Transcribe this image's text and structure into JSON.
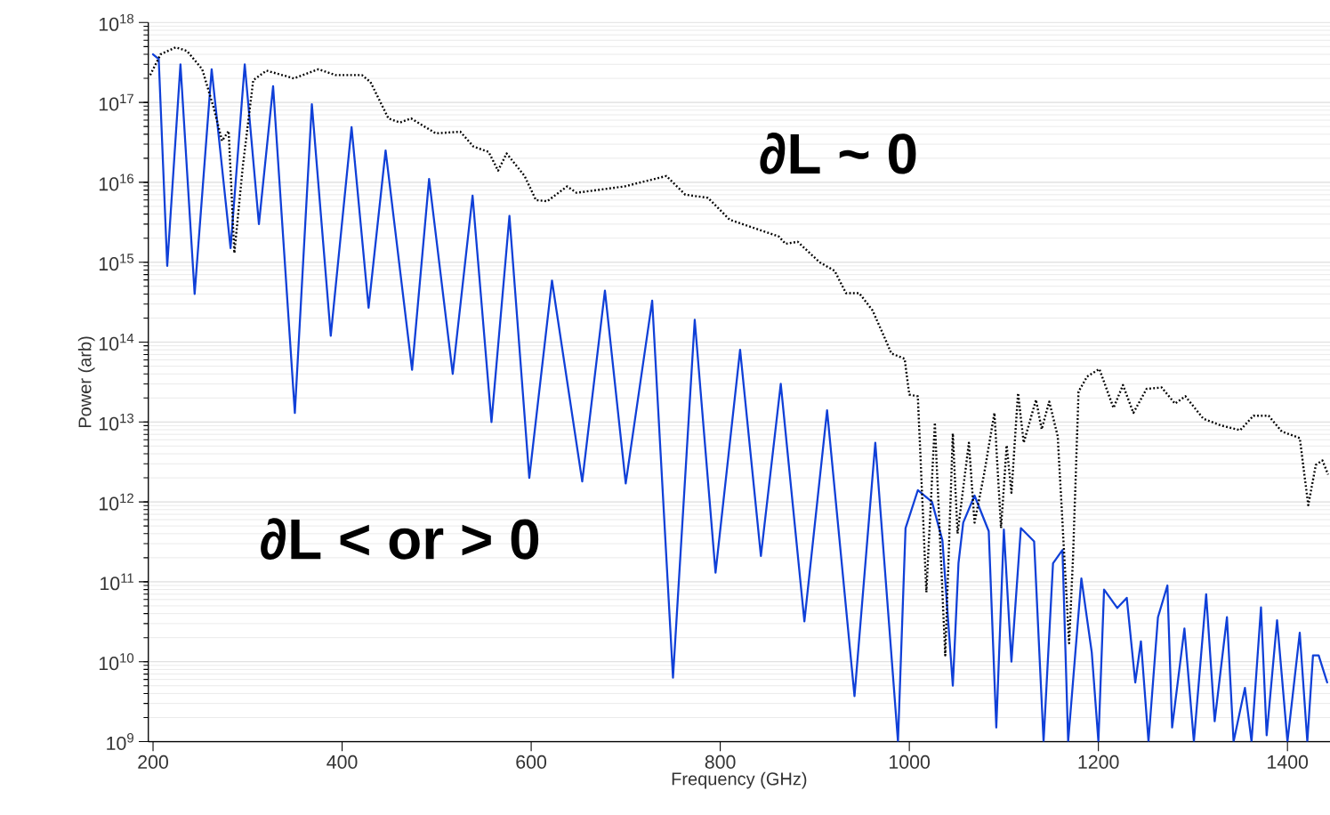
{
  "chart_data": {
    "type": "line",
    "xlabel": "Frequency (GHz)",
    "ylabel": "Power (arb)",
    "xlim": [
      195,
      1445
    ],
    "xticks": [
      200,
      400,
      600,
      800,
      1000,
      1200,
      1400
    ],
    "ylim": [
      1000000000.0,
      1e+18
    ],
    "yticks": [
      {
        "value": 1000000000.0,
        "label": "10$^{9}$"
      },
      {
        "value": 10000000000.0,
        "label": "10$^{10}$"
      },
      {
        "value": 100000000000.0,
        "label": "10$^{11}$"
      },
      {
        "value": 1000000000000.0,
        "label": "10$^{12}$"
      },
      {
        "value": 10000000000000.0,
        "label": "10$^{13}$"
      },
      {
        "value": 100000000000000.0,
        "label": "10$^{14}$"
      },
      {
        "value": 1000000000000000.0,
        "label": "10$^{15}$"
      },
      {
        "value": 1e+16,
        "label": "10$^{16}$"
      },
      {
        "value": 1e+17,
        "label": "10$^{17}$"
      },
      {
        "value": 1e+18,
        "label": "10$^{18}$"
      }
    ],
    "log": "y",
    "grid": "y",
    "annotations": [
      "∂L ~ 0",
      "∂L < or > 0"
    ],
    "series": [
      {
        "color": "#1040d8",
        "line_style": "solid",
        "x": [
          200,
          206,
          215,
          229,
          244,
          262,
          282,
          297,
          312,
          327,
          350,
          368,
          388,
          410,
          428,
          446,
          474,
          492,
          517,
          538,
          558,
          577,
          598,
          622,
          654,
          678,
          700,
          728,
          750,
          773,
          795,
          821,
          843,
          864,
          889,
          913,
          942,
          964,
          988,
          996,
          1009,
          1024,
          1035,
          1046,
          1052,
          1057,
          1069,
          1084,
          1092,
          1100,
          1108,
          1118,
          1132,
          1142,
          1152,
          1162,
          1168,
          1182,
          1193,
          1200,
          1206,
          1220,
          1230,
          1239,
          1245,
          1253,
          1263,
          1273,
          1278,
          1291,
          1301,
          1314,
          1323,
          1336,
          1343,
          1355,
          1362,
          1372,
          1378,
          1389,
          1400,
          1413,
          1421,
          1427,
          1433,
          1442
        ],
        "values": [
          4e+17,
          3.5e+17,
          900000000000000.0,
          3e+17,
          400000000000000.0,
          2.6e+17,
          1500000000000000.0,
          3e+17,
          3000000000000000.0,
          1.6e+17,
          13000000000000.0,
          9.5e+16,
          120000000000000.0,
          4.9e+16,
          270000000000000.0,
          2.5e+16,
          45000000000000.0,
          1.1e+16,
          40000000000000.0,
          6800000000000000.0,
          10000000000000.0,
          3800000000000000.0,
          2000000000000.0,
          590000000000000.0,
          1800000000000.0,
          440000000000000.0,
          1700000000000.0,
          330000000000000.0,
          6300000000.0,
          190000000000000.0,
          130000000000.0,
          80000000000000.0,
          210000000000.0,
          30000000000000.0,
          32000000000.0,
          14000000000000.0,
          3700000000.0,
          5500000000000.0,
          1000000000.0,
          470000000000.0,
          1400000000000.0,
          1000000000000.0,
          330000000000.0,
          5000000000.0,
          170000000000.0,
          550000000000.0,
          1200000000000.0,
          430000000000.0,
          1500000000.0,
          450000000000.0,
          10000000000.0,
          470000000000.0,
          320000000000.0,
          1000000000.0,
          170000000000.0,
          250000000000.0,
          1000000000.0,
          110000000000.0,
          13000000000.0,
          1000000000.0,
          80000000000.0,
          47000000000.0,
          63000000000.0,
          5500000000.0,
          18000000000.0,
          1000000000.0,
          36000000000.0,
          90000000000.0,
          1500000000.0,
          26000000000.0,
          1000000000.0,
          70000000000.0,
          1800000000.0,
          36000000000.0,
          1000000000.0,
          4700000000.0,
          1000000000.0,
          48000000000.0,
          1200000000.0,
          33000000000.0,
          1000000000.0,
          23000000000.0,
          1000000000.0,
          12000000000.0,
          12000000000.0,
          5500000000.0
        ]
      },
      {
        "color": "#000000",
        "line_style": "dotted",
        "x": [
          197,
          208,
          224,
          236,
          252,
          264,
          273,
          280,
          286,
          295,
          306,
          320,
          349,
          375,
          393,
          421,
          430,
          449,
          461,
          473,
          499,
          525,
          539,
          555,
          565,
          574,
          593,
          605,
          617,
          638,
          648,
          699,
          743,
          763,
          787,
          810,
          862,
          869,
          882,
          905,
          921,
          933,
          947,
          961,
          973,
          981,
          995,
          1000,
          1009,
          1018,
          1027,
          1038,
          1046,
          1051,
          1063,
          1069,
          1079,
          1090,
          1097,
          1103,
          1108,
          1115,
          1121,
          1134,
          1140,
          1148,
          1157,
          1169,
          1173,
          1179,
          1188,
          1201,
          1216,
          1226,
          1237,
          1251,
          1267,
          1281,
          1292,
          1311,
          1329,
          1350,
          1364,
          1380,
          1394,
          1413,
          1422,
          1430,
          1437,
          1443
        ],
        "values": [
          2.2e+17,
          4e+17,
          4.9e+17,
          4.4e+17,
          2.6e+17,
          8.7e+16,
          3.3e+16,
          4.4e+16,
          1300000000000000.0,
          1.6e+16,
          1.9e+17,
          2.5e+17,
          2e+17,
          2.6e+17,
          2.2e+17,
          2.2e+17,
          1.8e+17,
          6.3e+16,
          5.6e+16,
          6.3e+16,
          4.1e+16,
          4.3e+16,
          2.8e+16,
          2.4e+16,
          1.4e+16,
          2.3e+16,
          1.2e+16,
          6000000000000000.0,
          5800000000000000.0,
          8900000000000000.0,
          7400000000000000.0,
          8900000000000000.0,
          1.2e+16,
          7000000000000000.0,
          6400000000000000.0,
          3400000000000000.0,
          2100000000000000.0,
          1700000000000000.0,
          1800000000000000.0,
          1000000000000000.0,
          780000000000000.0,
          410000000000000.0,
          410000000000000.0,
          250000000000000.0,
          120000000000000.0,
          72000000000000.0,
          62000000000000.0,
          22000000000000.0,
          21000000000000.0,
          74000000000.0,
          9800000000000.0,
          12000000000.0,
          7200000000000.0,
          400000000000.0,
          5500000000000.0,
          550000000000.0,
          2200000000000.0,
          13000000000000.0,
          470000000000.0,
          5100000000000.0,
          1300000000000.0,
          23000000000000.0,
          5500000000000.0,
          19000000000000.0,
          8100000000000.0,
          18000000000000.0,
          6600000000000.0,
          17000000000.0,
          180000000000.0,
          24000000000000.0,
          37000000000000.0,
          46000000000000.0,
          15000000000000.0,
          29000000000000.0,
          13000000000000.0,
          26000000000000.0,
          27000000000000.0,
          17000000000000.0,
          21000000000000.0,
          11000000000000.0,
          9100000000000.0,
          7900000000000.0,
          12000000000000.0,
          12000000000000.0,
          7600000000000.0,
          6300000000000.0,
          910000000000.0,
          2900000000000.0,
          3300000000000.0,
          2200000000000.0
        ]
      }
    ]
  }
}
